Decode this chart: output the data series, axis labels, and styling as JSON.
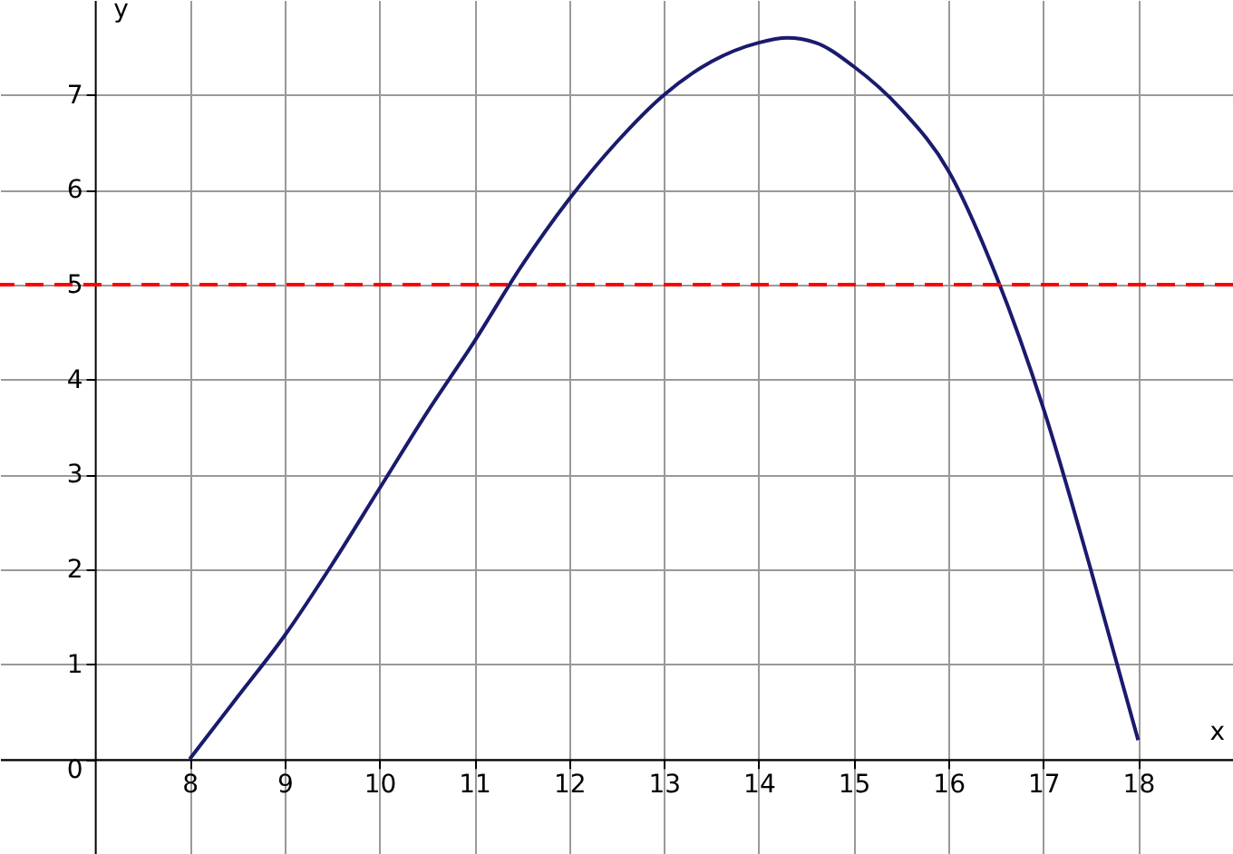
{
  "chart_data": {
    "type": "line",
    "xlabel": "x",
    "ylabel": "y",
    "x": [
      8,
      8.5,
      9,
      9.5,
      10,
      10.5,
      11,
      11.5,
      12,
      12.5,
      13,
      13.5,
      14,
      14.3,
      14.6,
      15,
      15.5,
      16,
      16.5,
      17,
      17.5,
      18
    ],
    "series": [
      {
        "color": "#1a1a6e",
        "values": [
          0,
          0.65,
          1.3,
          2.05,
          2.85,
          3.65,
          4.4,
          5.2,
          5.9,
          6.5,
          7.0,
          7.35,
          7.55,
          7.6,
          7.55,
          7.3,
          6.85,
          6.2,
          5.1,
          3.7,
          2.0,
          0.2
        ]
      }
    ],
    "xlim": [
      6,
      19
    ],
    "ylim": [
      -1,
      8
    ],
    "xticks": [
      8,
      9,
      10,
      11,
      12,
      13,
      14,
      15,
      16,
      17,
      18
    ],
    "yticks": [
      0,
      1,
      2,
      3,
      4,
      5,
      6,
      7
    ],
    "grid": true,
    "marker": "none",
    "line_style": "solid",
    "ref_lines": [
      {
        "axis": "y",
        "value": 5,
        "color": "#ff0000",
        "line_style": "dashed"
      }
    ]
  }
}
